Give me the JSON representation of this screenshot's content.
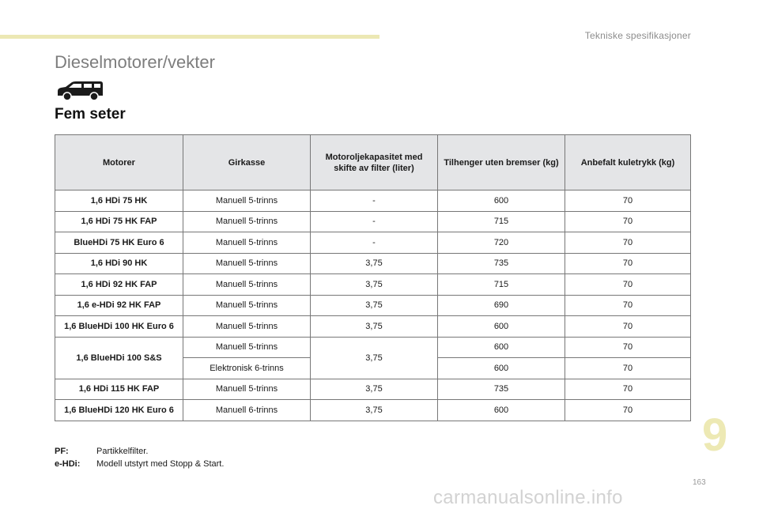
{
  "header": {
    "section_label": "Tekniske spesifikasjoner"
  },
  "page": {
    "title": "Dieselmotorer/vekter",
    "subtitle": "Fem seter",
    "vehicle_icon": "car-icon"
  },
  "table": {
    "headers": [
      "Motorer",
      "Girkasse",
      "Motoroljekapasitet med skifte av filter (liter)",
      "Tilhenger uten bremser (kg)",
      "Anbefalt kuletrykk (kg)"
    ],
    "rows": [
      {
        "motor": "1,6 HDi 75 HK",
        "gearbox": "Manuell 5-trinns",
        "oil": "-",
        "trailer": "600",
        "ball": "70"
      },
      {
        "motor": "1,6 HDi 75 HK FAP",
        "gearbox": "Manuell 5-trinns",
        "oil": "-",
        "trailer": "715",
        "ball": "70"
      },
      {
        "motor": "BlueHDi 75 HK Euro 6",
        "gearbox": "Manuell 5-trinns",
        "oil": "-",
        "trailer": "720",
        "ball": "70"
      },
      {
        "motor": "1,6 HDi 90 HK",
        "gearbox": "Manuell 5-trinns",
        "oil": "3,75",
        "trailer": "735",
        "ball": "70"
      },
      {
        "motor": "1,6 HDi 92 HK FAP",
        "gearbox": "Manuell 5-trinns",
        "oil": "3,75",
        "trailer": "715",
        "ball": "70"
      },
      {
        "motor": "1,6 e-HDi 92 HK FAP",
        "gearbox": "Manuell 5-trinns",
        "oil": "3,75",
        "trailer": "690",
        "ball": "70"
      },
      {
        "motor": "1,6 BlueHDi 100 HK Euro 6",
        "gearbox": "Manuell 5-trinns",
        "oil": "3,75",
        "trailer": "600",
        "ball": "70"
      },
      {
        "motor": "1,6 BlueHDi 100 S&S",
        "gearbox": "Manuell 5-trinns",
        "oil": "3,75",
        "trailer": "600",
        "ball": "70"
      },
      {
        "motor": "",
        "gearbox": "Elektronisk 6-trinns",
        "oil": "",
        "trailer": "600",
        "ball": "70"
      },
      {
        "motor": "1,6 HDi 115 HK FAP",
        "gearbox": "Manuell 5-trinns",
        "oil": "3,75",
        "trailer": "735",
        "ball": "70"
      },
      {
        "motor": "1,6 BlueHDi 120 HK Euro 6",
        "gearbox": "Manuell 6-trinns",
        "oil": "3,75",
        "trailer": "600",
        "ball": "70"
      }
    ]
  },
  "footnotes": [
    {
      "key": "PF:",
      "text": "Partikkelfilter."
    },
    {
      "key": "e-HDi:",
      "text": "Modell utstyrt med Stopp & Start."
    }
  ],
  "chapter_number": "9",
  "page_number": "163",
  "watermark": "carmanualsonline.info",
  "colors": {
    "accent_bar": "#ece8b4",
    "chapter_number": "#ede9b4",
    "header_fill": "#e4e5e7"
  }
}
